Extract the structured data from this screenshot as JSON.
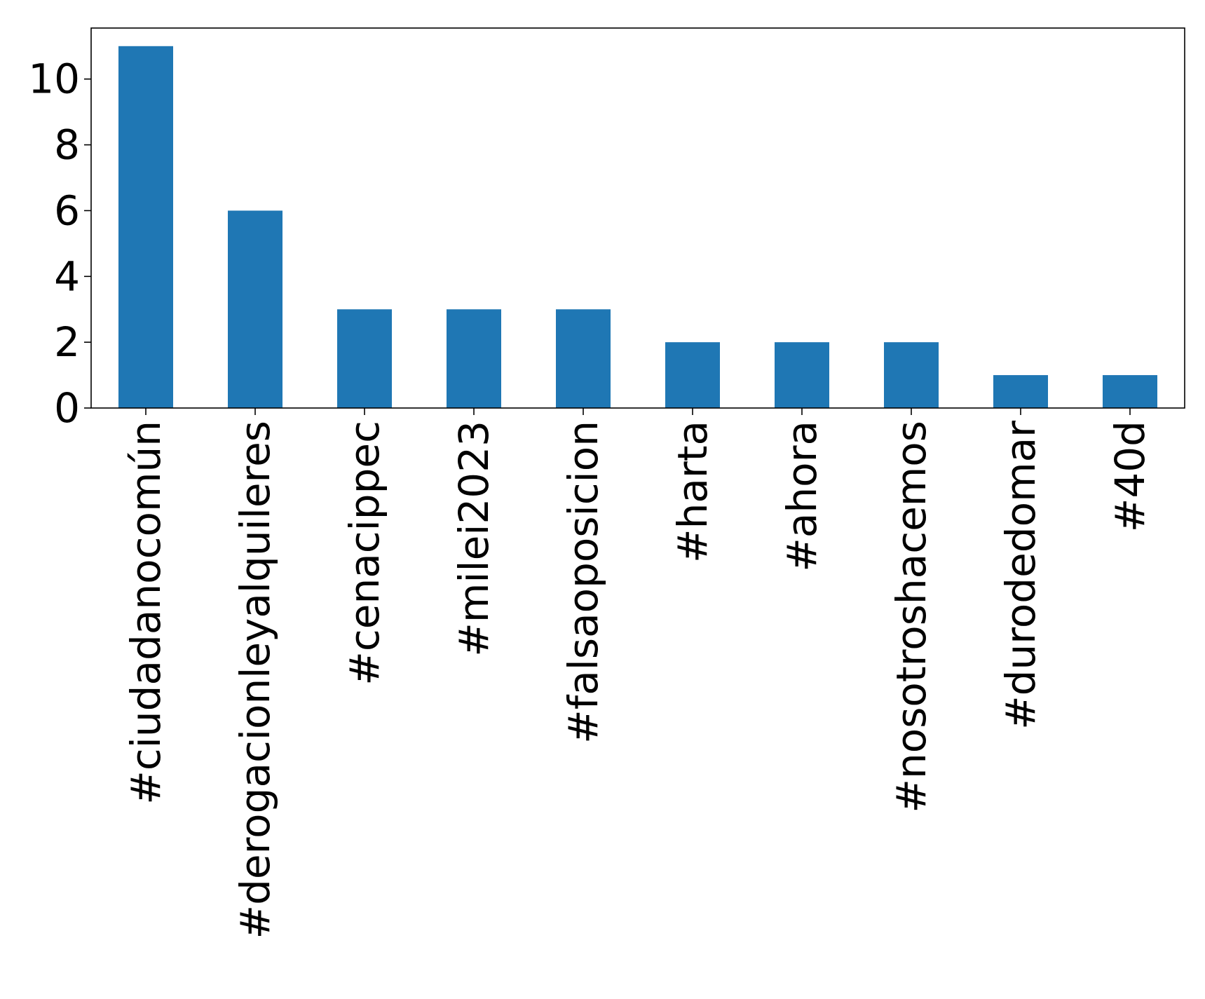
{
  "chart_data": {
    "type": "bar",
    "title": "",
    "xlabel": "",
    "ylabel": "",
    "categories": [
      "#ciudadanocomún",
      "#derogacionleyalquileres",
      "#cenacippec",
      "#milei2023",
      "#falsaoposicion",
      "#harta",
      "#ahora",
      "#nosotroshacemos",
      "#durodedomar",
      "#40d"
    ],
    "values": [
      11,
      6,
      3,
      3,
      3,
      2,
      2,
      2,
      1,
      1
    ],
    "ylim": [
      0,
      11.55
    ],
    "yticks": [
      0,
      2,
      4,
      6,
      8,
      10
    ],
    "xtick_rotation": "vertical",
    "grid": false,
    "legend": "none",
    "bar_color": "#1f77b4"
  }
}
